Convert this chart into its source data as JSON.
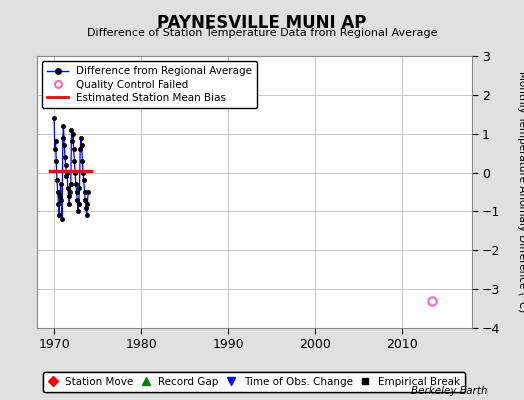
{
  "title": "PAYNESVILLE MUNI AP",
  "subtitle": "Difference of Station Temperature Data from Regional Average",
  "ylabel": "Monthly Temperature Anomaly Difference (°C)",
  "credit": "Berkeley Earth",
  "xlim": [
    1968,
    2018
  ],
  "ylim": [
    -4,
    3
  ],
  "yticks": [
    -4,
    -3,
    -2,
    -1,
    0,
    1,
    2,
    3
  ],
  "xticks": [
    1970,
    1980,
    1990,
    2000,
    2010
  ],
  "background_color": "#e0e0e0",
  "plot_background": "#ffffff",
  "grid_color": "#c8c8c8",
  "data_x": [
    1970.0,
    1970.08,
    1970.17,
    1970.25,
    1970.33,
    1970.42,
    1970.5,
    1970.58,
    1970.67,
    1970.75,
    1970.83,
    1970.92,
    1971.0,
    1971.08,
    1971.17,
    1971.25,
    1971.33,
    1971.42,
    1971.5,
    1971.58,
    1971.67,
    1971.75,
    1971.83,
    1971.92,
    1972.0,
    1972.08,
    1972.17,
    1972.25,
    1972.33,
    1972.42,
    1972.5,
    1972.58,
    1972.67,
    1972.75,
    1972.83,
    1972.92,
    1973.0,
    1973.08,
    1973.17,
    1973.25,
    1973.33,
    1973.42,
    1973.5,
    1973.58,
    1973.67,
    1973.75,
    1973.83,
    1973.92
  ],
  "data_y": [
    1.4,
    0.6,
    0.8,
    0.3,
    -0.2,
    -0.5,
    -0.8,
    -1.1,
    -0.6,
    -0.3,
    -0.7,
    -1.2,
    0.9,
    1.2,
    0.7,
    0.4,
    0.2,
    -0.1,
    0.0,
    -0.4,
    -0.6,
    -0.8,
    -0.5,
    -0.3,
    1.1,
    0.8,
    1.0,
    0.6,
    0.3,
    0.0,
    -0.3,
    -0.5,
    -0.7,
    -1.0,
    -0.8,
    -0.4,
    0.6,
    0.9,
    0.7,
    0.3,
    0.0,
    -0.2,
    -0.5,
    -0.7,
    -0.9,
    -1.1,
    -0.8,
    -0.5
  ],
  "bias_x_start": 1969.5,
  "bias_x_end": 1974.2,
  "bias_y": 0.05,
  "qc_x": [
    2013.5
  ],
  "qc_y": [
    -3.3
  ],
  "line_color": "#0000ff",
  "marker_color": "#000000",
  "bias_color": "#ff0000",
  "qc_color": "#ff69b4"
}
